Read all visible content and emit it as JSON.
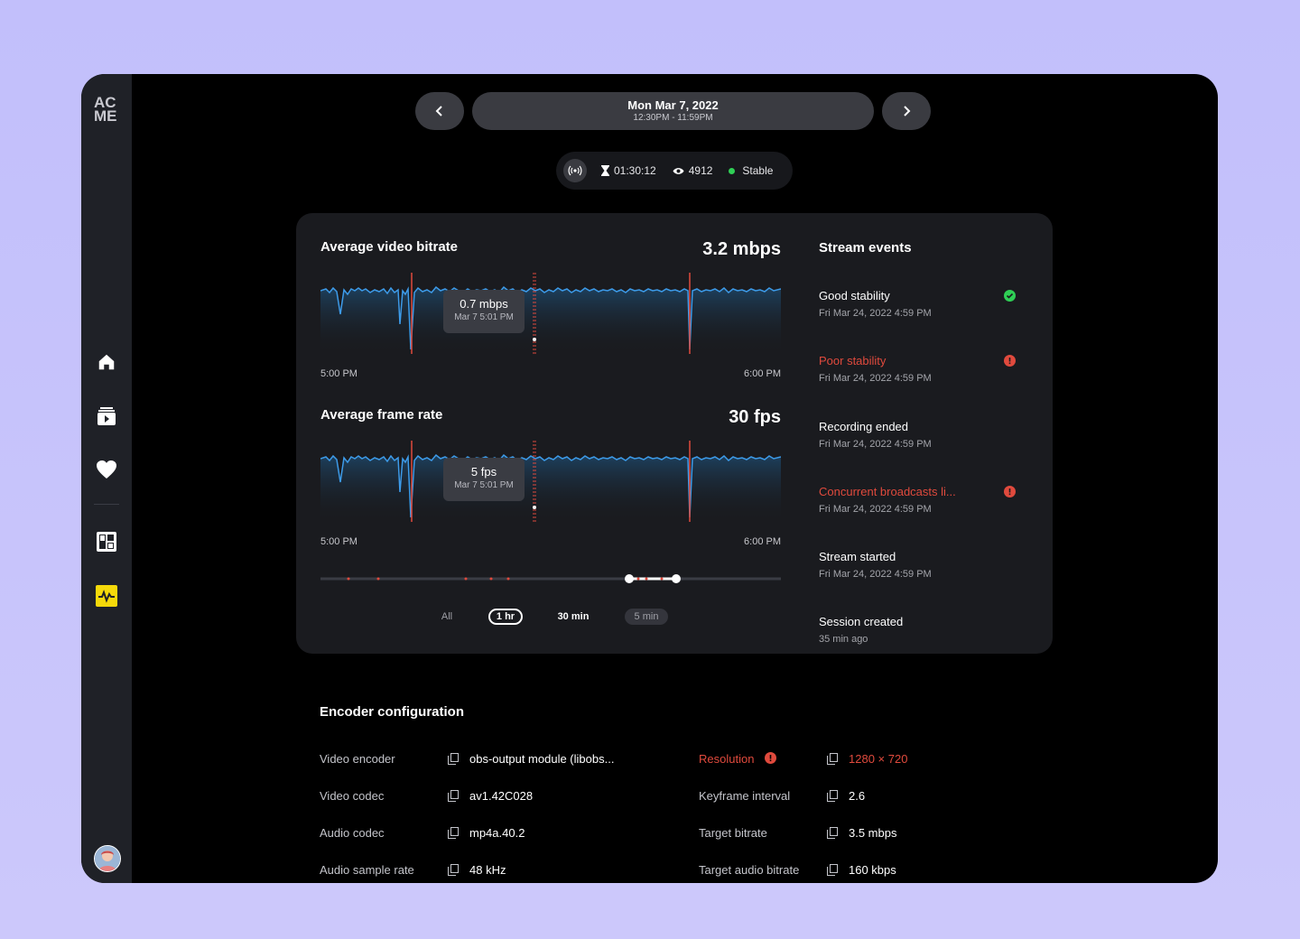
{
  "app": {
    "logo_line1": "AC",
    "logo_line2": "ME"
  },
  "sidebar": {
    "items": [
      {
        "icon": "home-icon"
      },
      {
        "icon": "video-library-icon"
      },
      {
        "icon": "heart-icon"
      },
      {
        "icon": "dashboard-icon"
      },
      {
        "icon": "activity-icon",
        "active": true
      }
    ]
  },
  "date_nav": {
    "date": "Mon Mar 7, 2022",
    "time_range": "12:30PM - 11:59PM"
  },
  "stream_stats": {
    "duration": "01:30:12",
    "viewers": "4912",
    "status": "Stable"
  },
  "bitrate_chart": {
    "title": "Average video bitrate",
    "value": "3.2 mbps",
    "x_start": "5:00 PM",
    "x_end": "6:00 PM",
    "tooltip_value": "0.7 mbps",
    "tooltip_date": "Mar 7 5:01 PM"
  },
  "framerate_chart": {
    "title": "Average frame rate",
    "value": "30 fps",
    "x_start": "5:00 PM",
    "x_end": "6:00 PM",
    "tooltip_value": "5 fps",
    "tooltip_date": "Mar 7 5:01 PM"
  },
  "range_selector": {
    "all": "All",
    "one_hr": "1 hr",
    "thirty_min": "30 min",
    "five_min": "5 min",
    "active": "1 hr"
  },
  "events": {
    "title": "Stream events",
    "items": [
      {
        "title": "Good stability",
        "date": "Fri Mar 24, 2022 4:59 PM",
        "status": "ok"
      },
      {
        "title": "Poor stability",
        "date": "Fri Mar 24, 2022 4:59 PM",
        "status": "error"
      },
      {
        "title": "Recording ended",
        "date": "Fri Mar 24, 2022 4:59 PM",
        "status": "none"
      },
      {
        "title": "Concurrent broadcasts li...",
        "date": "Fri Mar 24, 2022 4:59 PM",
        "status": "error"
      },
      {
        "title": "Stream started",
        "date": "Fri Mar 24, 2022 4:59 PM",
        "status": "none"
      },
      {
        "title": "Session created",
        "date": "35 min ago",
        "status": "none"
      }
    ]
  },
  "encoder": {
    "title": "Encoder configuration",
    "left": [
      {
        "label": "Video encoder",
        "value": "obs-output module (libobs..."
      },
      {
        "label": "Video codec",
        "value": "av1.42C028"
      },
      {
        "label": "Audio codec",
        "value": "mp4a.40.2"
      },
      {
        "label": "Audio sample rate",
        "value": "48 kHz"
      }
    ],
    "right": [
      {
        "label": "Resolution",
        "value": "1280 × 720",
        "warning": true
      },
      {
        "label": "Keyframe interval",
        "value": "2.6"
      },
      {
        "label": "Target bitrate",
        "value": "3.5 mbps"
      },
      {
        "label": "Target audio bitrate",
        "value": "160 kbps"
      }
    ]
  },
  "colors": {
    "accent_yellow": "#f5d90a",
    "error_red": "#e04a3d",
    "ok_green": "#2fcf55",
    "line_blue": "#3d9be9"
  }
}
